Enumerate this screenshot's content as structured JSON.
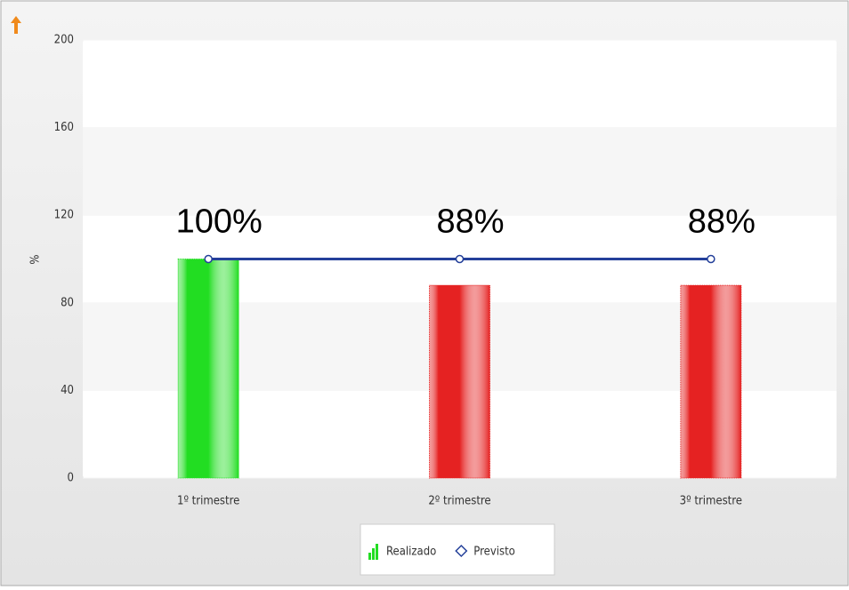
{
  "chart_data": {
    "type": "bar",
    "y_label": "%",
    "categories": [
      "1º trimestre",
      "2º trimestre",
      "3º trimestre"
    ],
    "series": [
      {
        "name": "Realizado",
        "type": "bar",
        "colors": [
          "#22dd22",
          "#e52222",
          "#e52222"
        ],
        "values": [
          100,
          88,
          88
        ],
        "value_labels": [
          "100%",
          "88%",
          "88%"
        ]
      },
      {
        "name": "Previsto",
        "type": "line",
        "color": "#24409a",
        "values": [
          100,
          100,
          100
        ]
      }
    ],
    "ylim": [
      0,
      200
    ],
    "yticks": [
      0,
      40,
      80,
      120,
      160,
      200
    ],
    "grid": true
  }
}
